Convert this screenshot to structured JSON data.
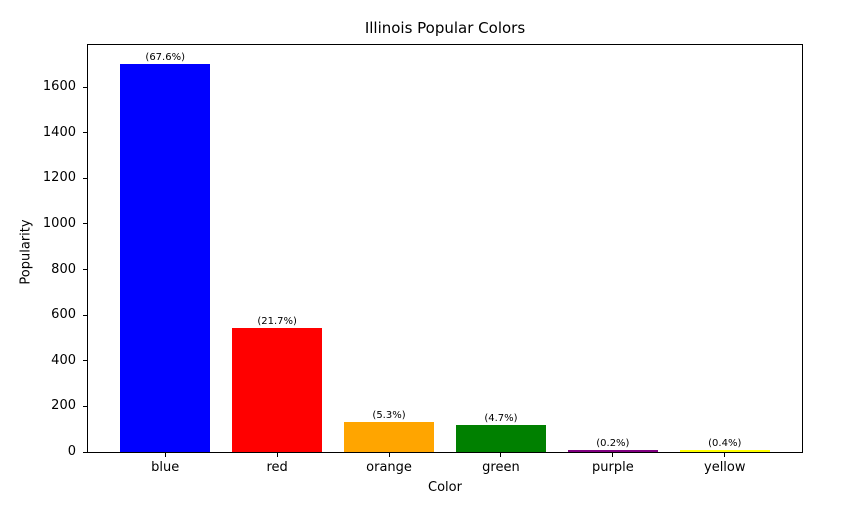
{
  "chart_data": {
    "type": "bar",
    "title": "Illinois Popular Colors",
    "xlabel": "Color",
    "ylabel": "Popularity",
    "categories": [
      "blue",
      "red",
      "orange",
      "green",
      "purple",
      "yellow"
    ],
    "values": [
      1700,
      545,
      133,
      118,
      6,
      11
    ],
    "value_labels": [
      "(67.6%)",
      "(21.7%)",
      "(5.3%)",
      "(4.7%)",
      "(0.2%)",
      "(0.4%)"
    ],
    "bar_colors": [
      "#0000ff",
      "#ff0000",
      "#ffa500",
      "#008000",
      "#800080",
      "#ffff00"
    ],
    "yticks": [
      0,
      200,
      400,
      600,
      800,
      1000,
      1200,
      1400,
      1600
    ],
    "ylim": [
      0,
      1785
    ],
    "grid": false,
    "legend": null,
    "axis_color": "#000000",
    "background_color": "#ffffff"
  }
}
